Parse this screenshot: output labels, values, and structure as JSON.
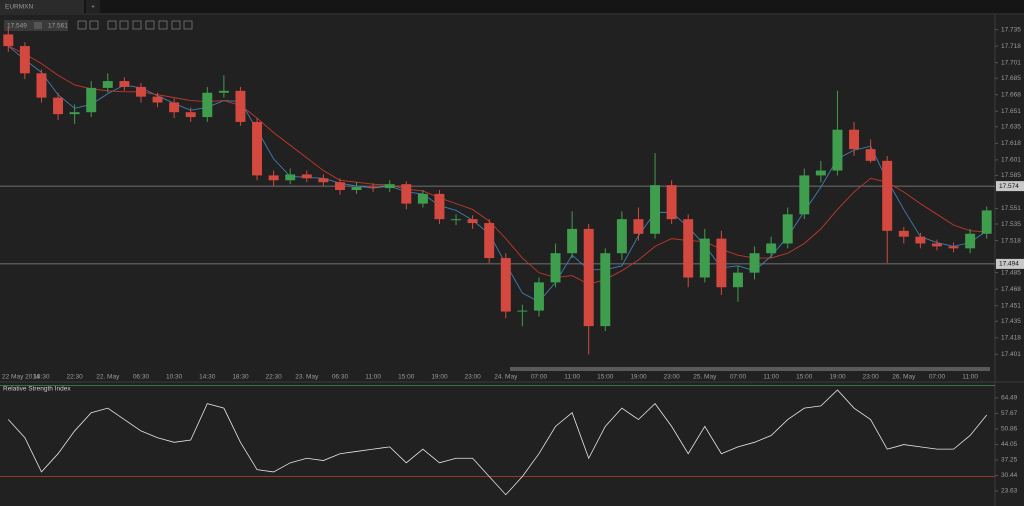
{
  "ui": {
    "tab": "EURMXN",
    "add_tab": "+",
    "bid": "17.549",
    "ask": "17.561"
  },
  "chart_data": [
    {
      "type": "candlestick",
      "categories": [
        "22 May 2014",
        null,
        "18:30",
        null,
        "22:30",
        null,
        "22. May",
        null,
        "06:30",
        null,
        "10:30",
        null,
        "14:30",
        null,
        "18:30",
        null,
        "22:30",
        null,
        "23. May",
        null,
        "06:30",
        null,
        "11:00",
        null,
        "15:00",
        null,
        "19:00",
        null,
        "23:00",
        null,
        "24. May",
        null,
        "07:00",
        null,
        "11:00",
        null,
        "15:00",
        null,
        "19:00",
        null,
        "23:00",
        null,
        "25. May",
        null,
        "07:00",
        null,
        "11:00",
        null,
        "15:00",
        null,
        "19:00",
        null,
        "23:00",
        null,
        "26. May",
        null,
        "07:00",
        null,
        "11:00",
        null
      ],
      "open": [
        17.73,
        17.718,
        17.69,
        17.665,
        17.648,
        17.65,
        17.675,
        17.682,
        17.676,
        17.666,
        17.66,
        17.65,
        17.645,
        17.67,
        17.672,
        17.64,
        17.585,
        17.58,
        17.586,
        17.582,
        17.578,
        17.57,
        17.573,
        17.572,
        17.576,
        17.556,
        17.566,
        17.54,
        17.54,
        17.536,
        17.5,
        17.445,
        17.446,
        17.475,
        17.505,
        17.53,
        17.43,
        17.505,
        17.54,
        17.525,
        17.575,
        17.54,
        17.48,
        17.52,
        17.47,
        17.485,
        17.505,
        17.515,
        17.545,
        17.585,
        17.59,
        17.632,
        17.612,
        17.6,
        17.528,
        17.522,
        17.515,
        17.512,
        17.51,
        17.525
      ],
      "high": [
        17.737,
        17.722,
        17.694,
        17.67,
        17.658,
        17.682,
        17.69,
        17.686,
        17.68,
        17.67,
        17.664,
        17.655,
        17.676,
        17.688,
        17.676,
        17.644,
        17.59,
        17.592,
        17.59,
        17.586,
        17.582,
        17.578,
        17.577,
        17.58,
        17.579,
        17.57,
        17.57,
        17.545,
        17.544,
        17.54,
        17.505,
        17.452,
        17.48,
        17.515,
        17.548,
        17.535,
        17.51,
        17.548,
        17.552,
        17.608,
        17.58,
        17.545,
        17.53,
        17.528,
        17.492,
        17.512,
        17.522,
        17.552,
        17.592,
        17.6,
        17.672,
        17.64,
        17.622,
        17.605,
        17.532,
        17.526,
        17.519,
        17.516,
        17.53,
        17.553
      ],
      "low": [
        17.712,
        17.684,
        17.66,
        17.642,
        17.638,
        17.645,
        17.67,
        17.672,
        17.66,
        17.655,
        17.644,
        17.64,
        17.64,
        17.665,
        17.636,
        17.58,
        17.574,
        17.576,
        17.578,
        17.574,
        17.565,
        17.566,
        17.568,
        17.568,
        17.55,
        17.552,
        17.535,
        17.534,
        17.53,
        17.495,
        17.438,
        17.43,
        17.44,
        17.47,
        17.5,
        17.401,
        17.425,
        17.498,
        17.518,
        17.52,
        17.535,
        17.47,
        17.475,
        17.462,
        17.455,
        17.478,
        17.5,
        17.51,
        17.54,
        17.578,
        17.585,
        17.605,
        17.598,
        17.495,
        17.515,
        17.51,
        17.508,
        17.506,
        17.505,
        17.52
      ],
      "close": [
        17.718,
        17.69,
        17.665,
        17.648,
        17.65,
        17.675,
        17.682,
        17.676,
        17.666,
        17.66,
        17.65,
        17.645,
        17.67,
        17.672,
        17.64,
        17.585,
        17.58,
        17.586,
        17.582,
        17.578,
        17.57,
        17.573,
        17.572,
        17.576,
        17.556,
        17.566,
        17.54,
        17.54,
        17.536,
        17.5,
        17.445,
        17.446,
        17.475,
        17.505,
        17.53,
        17.43,
        17.505,
        17.54,
        17.525,
        17.575,
        17.54,
        17.48,
        17.52,
        17.47,
        17.485,
        17.505,
        17.515,
        17.545,
        17.585,
        17.59,
        17.632,
        17.612,
        17.6,
        17.528,
        17.522,
        17.515,
        17.512,
        17.51,
        17.525,
        17.549
      ],
      "up_color": "#3f9e4d",
      "down_color": "#d4493f",
      "overlays": [
        {
          "color": "#3f7fb5",
          "values": [
            17.718,
            17.704,
            17.691,
            17.668,
            17.654,
            17.658,
            17.669,
            17.678,
            17.675,
            17.667,
            17.659,
            17.652,
            17.655,
            17.662,
            17.661,
            17.632,
            17.602,
            17.584,
            17.583,
            17.582,
            17.577,
            17.574,
            17.572,
            17.574,
            17.568,
            17.566,
            17.554,
            17.549,
            17.539,
            17.525,
            17.494,
            17.464,
            17.455,
            17.475,
            17.503,
            17.488,
            17.488,
            17.492,
            17.523,
            17.547,
            17.547,
            17.532,
            17.513,
            17.49,
            17.492,
            17.487,
            17.502,
            17.522,
            17.548,
            17.573,
            17.602,
            17.611,
            17.615,
            17.58,
            17.55,
            17.522,
            17.516,
            17.512,
            17.516,
            17.528
          ]
        },
        {
          "color": "#c0392b",
          "values": [
            17.718,
            17.71,
            17.7,
            17.688,
            17.678,
            17.674,
            17.672,
            17.671,
            17.671,
            17.668,
            17.665,
            17.662,
            17.661,
            17.662,
            17.657,
            17.644,
            17.629,
            17.616,
            17.603,
            17.59,
            17.58,
            17.578,
            17.576,
            17.575,
            17.571,
            17.569,
            17.562,
            17.556,
            17.55,
            17.538,
            17.52,
            17.5,
            17.485,
            17.48,
            17.482,
            17.473,
            17.478,
            17.487,
            17.498,
            17.512,
            17.52,
            17.518,
            17.517,
            17.509,
            17.503,
            17.5,
            17.5,
            17.505,
            17.515,
            17.53,
            17.55,
            17.568,
            17.582,
            17.578,
            17.568,
            17.556,
            17.545,
            17.534,
            17.528,
            17.527
          ]
        }
      ],
      "hlines": [
        17.574,
        17.494
      ],
      "ylim": [
        17.389,
        17.751
      ],
      "yticks": [
        17.735,
        17.718,
        17.701,
        17.685,
        17.668,
        17.651,
        17.635,
        17.618,
        17.601,
        17.585,
        17.551,
        17.535,
        17.518,
        17.485,
        17.468,
        17.451,
        17.435,
        17.418,
        17.401
      ]
    },
    {
      "type": "line",
      "title": "Relative Strength Index",
      "color": "#e6e6e6",
      "values": [
        55,
        47,
        32,
        40,
        50,
        58,
        60,
        55,
        50,
        47,
        45,
        46,
        62,
        60,
        45,
        33,
        32,
        36,
        38,
        37,
        40,
        41,
        42,
        43,
        36,
        42,
        36,
        38,
        38,
        30,
        22,
        30,
        40,
        52,
        58,
        38,
        52,
        60,
        55,
        62,
        52,
        40,
        52,
        40,
        43,
        45,
        48,
        55,
        60,
        61,
        68,
        60,
        55,
        42,
        44,
        43,
        42,
        42,
        48,
        57
      ],
      "levels": [
        {
          "value": 30,
          "color": "#b5432f"
        },
        {
          "value": 70,
          "color": "#3f8f4a"
        }
      ],
      "ylim": [
        18.8,
        70.6
      ],
      "yticks": [
        64.49,
        57.67,
        50.86,
        44.05,
        37.25,
        30.44,
        23.63
      ]
    }
  ]
}
